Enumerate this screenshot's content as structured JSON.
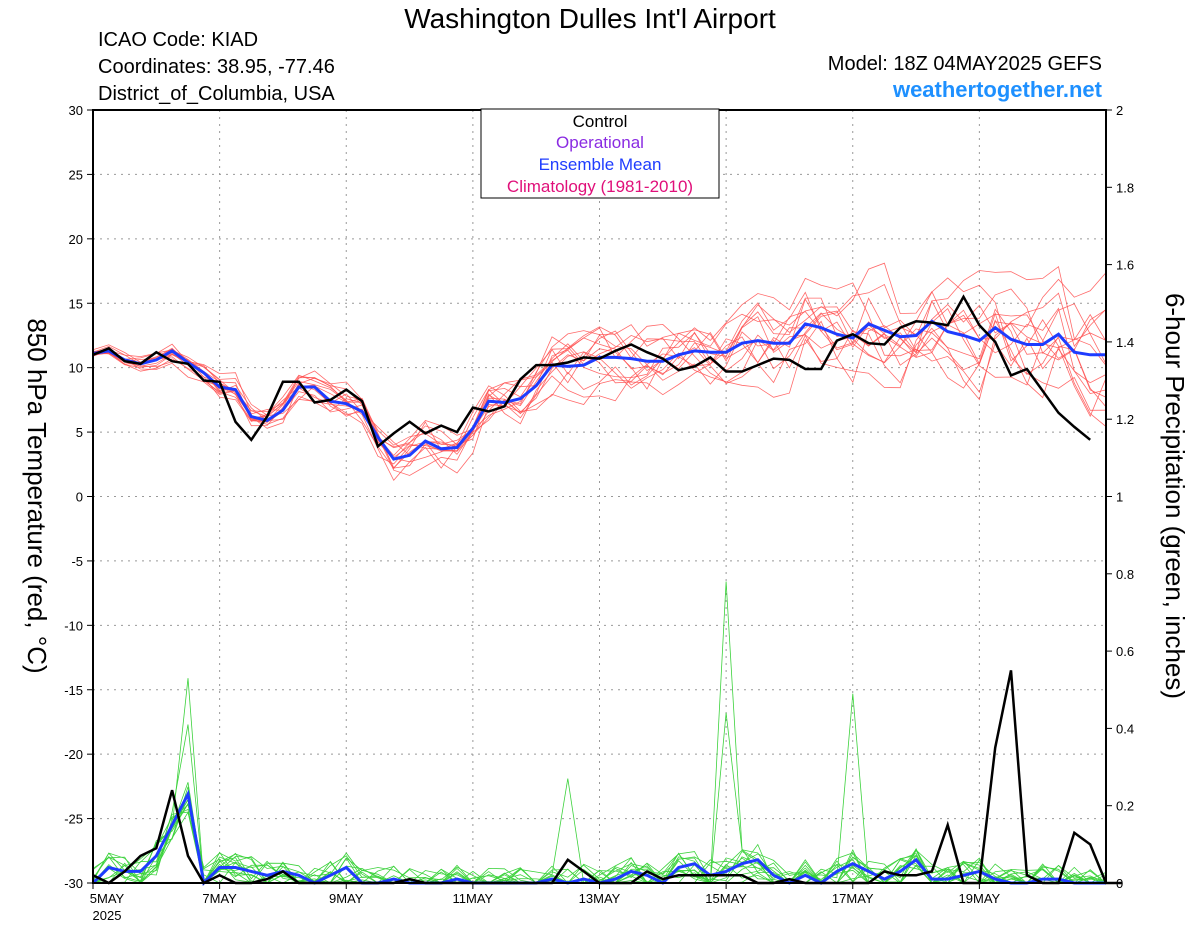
{
  "header": {
    "title": "Washington Dulles Int'l Airport",
    "icao": "ICAO Code: KIAD",
    "coords": "Coordinates: 38.95, -77.46",
    "region": "District_of_Columbia, USA",
    "model": "Model: 18Z 04MAY2025 GEFS",
    "site": "weathertogether.net"
  },
  "colors": {
    "control": "#000000",
    "operational": "#8A2BE2",
    "mean": "#1E3CFF",
    "climatology": "#E0107A",
    "temp_members": "#FF5050",
    "precip_members": "#3CD23C",
    "site": "#1E90FF"
  },
  "chart_data": {
    "type": "line",
    "legend": [
      "Control",
      "Operational",
      "Ensemble Mean",
      "Climatology (1981-2010)"
    ],
    "legend_position": "top-center",
    "ylabel_left": "850 hPa Temperature (red, °C)",
    "ylabel_right": "6-hour Precipitation (green, inches)",
    "ylim_left": [
      -30,
      30
    ],
    "ylim_right": [
      0,
      2
    ],
    "yticks_left": [
      30,
      25,
      20,
      15,
      10,
      5,
      0,
      -5,
      -10,
      -15,
      -20,
      -25,
      -30
    ],
    "yticks_right": [
      2,
      1.8,
      1.6,
      1.4,
      1.2,
      1,
      0.8,
      0.6,
      0.4,
      0.2,
      0
    ],
    "x_start": "5MAY 2025",
    "x_step_hours": 6,
    "x_ticks": [
      {
        "label": "5MAY",
        "sub": "2025",
        "step": 0
      },
      {
        "label": "7MAY",
        "step": 8
      },
      {
        "label": "9MAY",
        "step": 16
      },
      {
        "label": "11MAY",
        "step": 24
      },
      {
        "label": "13MAY",
        "step": 32
      },
      {
        "label": "15MAY",
        "step": 40
      },
      {
        "label": "17MAY",
        "step": 48
      },
      {
        "label": "19MAY",
        "step": 56
      }
    ],
    "grid": true,
    "temperature": {
      "control": [
        11.0,
        11.5,
        10.5,
        10.3,
        11.2,
        10.5,
        10.3,
        9.0,
        8.9,
        5.8,
        4.4,
        6.2,
        8.9,
        8.9,
        7.3,
        7.5,
        8.3,
        7.4,
        3.9,
        4.9,
        5.8,
        4.9,
        5.5,
        5.0,
        6.9,
        6.6,
        7.0,
        9.1,
        10.2,
        10.2,
        10.4,
        10.8,
        10.7,
        11.3,
        11.8,
        11.2,
        10.7,
        9.8,
        10.1,
        10.8,
        9.7,
        9.7,
        10.2,
        10.7,
        10.6,
        9.9,
        9.9,
        12.1,
        12.6,
        11.9,
        11.8,
        13.1,
        13.6,
        13.5,
        13.3,
        15.5,
        13.3,
        12.0,
        9.4,
        9.9,
        8.2,
        6.5,
        5.4,
        4.4
      ],
      "mean": [
        11.1,
        11.3,
        10.6,
        10.3,
        10.6,
        11.3,
        10.4,
        9.6,
        8.5,
        8.3,
        6.2,
        5.9,
        6.7,
        8.5,
        8.5,
        7.4,
        7.2,
        6.6,
        4.6,
        2.9,
        3.2,
        4.3,
        3.7,
        3.8,
        5.3,
        7.4,
        7.3,
        7.6,
        8.6,
        10.2,
        10.1,
        10.2,
        10.8,
        10.8,
        10.7,
        10.5,
        10.5,
        11.0,
        11.3,
        11.2,
        11.2,
        11.9,
        12.1,
        11.9,
        11.9,
        13.4,
        13.1,
        12.6,
        12.3,
        13.4,
        12.9,
        12.4,
        12.5,
        13.6,
        12.8,
        12.5,
        12.1,
        13.1,
        12.2,
        11.8,
        11.8,
        12.6,
        11.2,
        11.0,
        11.0
      ],
      "member_count": 14
    },
    "precipitation": {
      "control": [
        0.02,
        0.0,
        0.03,
        0.07,
        0.09,
        0.24,
        0.07,
        0.0,
        0.02,
        0.0,
        0.0,
        0.01,
        0.03,
        0.0,
        0.0,
        0.0,
        0.0,
        0.0,
        0.0,
        0.0,
        0.01,
        0.0,
        0.0,
        0.0,
        0.0,
        0.0,
        0.0,
        0.0,
        0.0,
        0.0,
        0.06,
        0.03,
        0.0,
        0.0,
        0.0,
        0.03,
        0.01,
        0.02,
        0.02,
        0.02,
        0.02,
        0.02,
        0.0,
        0.0,
        0.01,
        0.0,
        0.0,
        0.0,
        0.0,
        0.0,
        0.03,
        0.02,
        0.02,
        0.03,
        0.15,
        0.0,
        0.0,
        0.35,
        0.55,
        0.02,
        0.0,
        0.0,
        0.13,
        0.1,
        0.0,
        0.0
      ],
      "mean": [
        0.0,
        0.04,
        0.03,
        0.03,
        0.07,
        0.15,
        0.23,
        0.0,
        0.04,
        0.04,
        0.03,
        0.02,
        0.03,
        0.02,
        0.0,
        0.02,
        0.04,
        0.0,
        0.0,
        0.01,
        0.0,
        0.0,
        0.0,
        0.01,
        0.0,
        0.0,
        0.0,
        0.0,
        0.0,
        0.01,
        0.0,
        0.01,
        0.0,
        0.01,
        0.03,
        0.02,
        0.0,
        0.04,
        0.05,
        0.02,
        0.03,
        0.05,
        0.06,
        0.02,
        0.0,
        0.02,
        0.0,
        0.03,
        0.05,
        0.03,
        0.01,
        0.03,
        0.06,
        0.01,
        0.01,
        0.02,
        0.03,
        0.01,
        0.0,
        0.0,
        0.01,
        0.01,
        0.0,
        0.0,
        0.0
      ],
      "member_count": 14,
      "member_peaks": [
        0.78,
        0.53,
        0.49,
        0.44,
        0.41,
        0.27
      ]
    }
  }
}
